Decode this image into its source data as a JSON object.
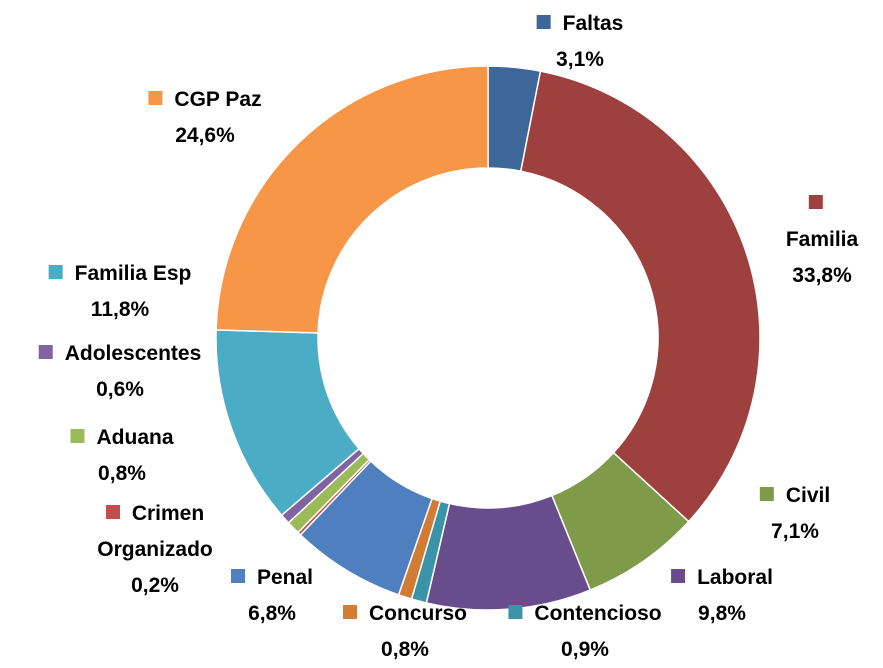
{
  "chart_data": {
    "type": "donut",
    "categories": [
      "Faltas",
      "Familia",
      "Civil",
      "Laboral",
      "Contencioso",
      "Concurso",
      "Penal",
      "Crimen Organizado",
      "Aduana",
      "Adolescentes",
      "Familia Esp",
      "CGP Paz"
    ],
    "values": [
      3.1,
      33.8,
      7.1,
      9.8,
      0.9,
      0.8,
      6.8,
      0.2,
      0.8,
      0.6,
      11.8,
      24.6
    ],
    "value_labels": [
      "3,1%",
      "33,8%",
      "7,1%",
      "9,8%",
      "0,9%",
      "0,8%",
      "6,8%",
      "0,2%",
      "0,8%",
      "0,6%",
      "11,8%",
      "24,6%"
    ],
    "colors": [
      "#3d6699",
      "#9e403e",
      "#7f9a48",
      "#684d8c",
      "#3b93a8",
      "#d17b34",
      "#4f7fbf",
      "#c0504d",
      "#9bbb59",
      "#8064a2",
      "#4bacc6",
      "#f79646"
    ]
  }
}
